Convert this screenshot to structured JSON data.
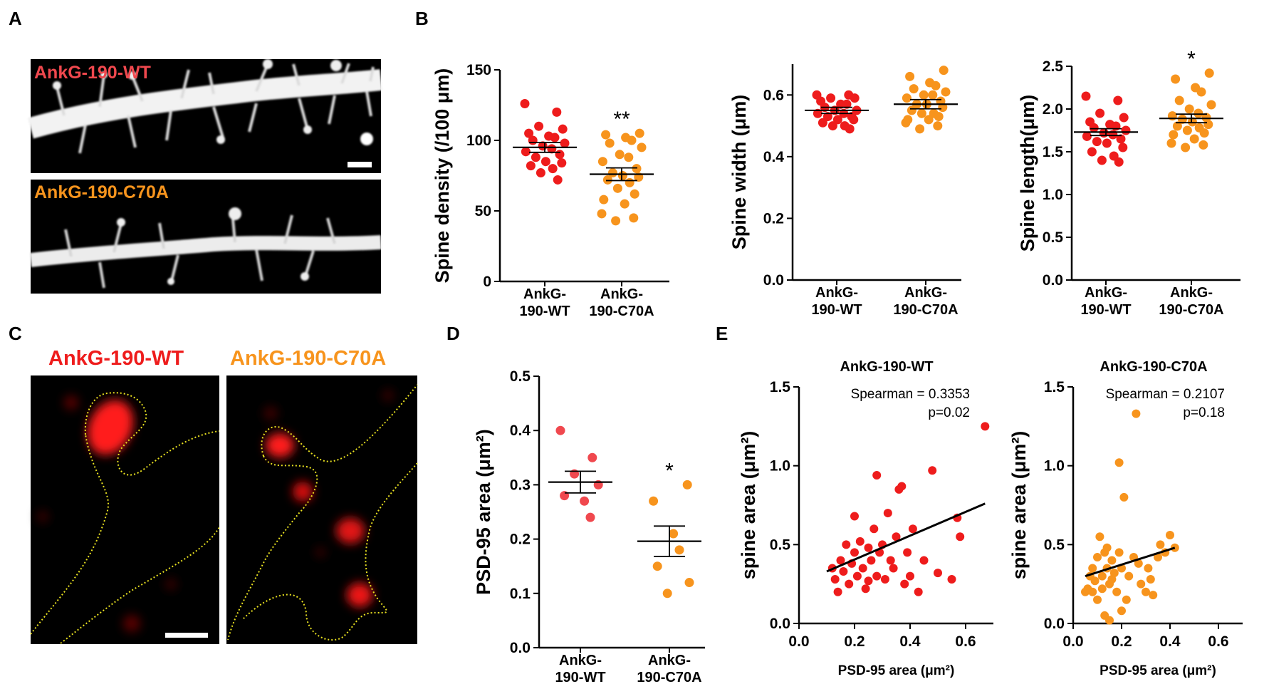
{
  "panel_labels": {
    "a": "A",
    "b": "B",
    "c": "C",
    "d": "D",
    "e": "E"
  },
  "colors": {
    "wt": "#ee1c1c",
    "c70a": "#f7941d",
    "wt_light": "#f0484e",
    "outline": "#e8e020"
  },
  "images": {
    "a_top_label": "AnkG-190-WT",
    "a_bottom_label": "AnkG-190-C70A",
    "c_left_title": "AnkG-190-WT",
    "c_right_title": "AnkG-190-C70A"
  },
  "chart_data": [
    {
      "id": "density",
      "type": "scatter",
      "ylabel": "Spine density (/100 μm)",
      "ylim": [
        0,
        150
      ],
      "yticks": [
        "0",
        "50",
        "100",
        "150"
      ],
      "categories": [
        "AnkG-\n190-WT",
        "AnkG-\n190-C70A"
      ],
      "series": [
        {
          "name": "AnkG-190-WT",
          "mean": 95,
          "sem": 3.5,
          "values": [
            126,
            120,
            110,
            108,
            105,
            103,
            102,
            100,
            98,
            96,
            94,
            92,
            90,
            88,
            85,
            84,
            82,
            80,
            77,
            72
          ]
        },
        {
          "name": "AnkG-190-C70A",
          "mean": 76,
          "sem": 4.5,
          "values": [
            105,
            104,
            102,
            100,
            98,
            95,
            90,
            88,
            85,
            80,
            77,
            75,
            74,
            72,
            70,
            66,
            62,
            58,
            55,
            48,
            45,
            43
          ]
        }
      ],
      "significance": "**"
    },
    {
      "id": "width",
      "type": "scatter",
      "ylabel": "Spine width (μm)",
      "ylim": [
        0,
        0.7
      ],
      "yticks": [
        "0.0",
        "0.2",
        "0.4",
        "0.6"
      ],
      "categories": [
        "AnkG-\n190-WT",
        "AnkG-\n190-C70A"
      ],
      "series": [
        {
          "name": "AnkG-190-WT",
          "mean": 0.55,
          "sem": 0.01,
          "values": [
            0.6,
            0.6,
            0.59,
            0.59,
            0.58,
            0.57,
            0.57,
            0.56,
            0.55,
            0.55,
            0.54,
            0.54,
            0.53,
            0.53,
            0.52,
            0.52,
            0.51,
            0.5,
            0.5,
            0.49
          ]
        },
        {
          "name": "AnkG-190-C70A",
          "mean": 0.57,
          "sem": 0.015,
          "values": [
            0.68,
            0.66,
            0.64,
            0.63,
            0.62,
            0.61,
            0.6,
            0.6,
            0.59,
            0.58,
            0.57,
            0.57,
            0.56,
            0.55,
            0.54,
            0.54,
            0.53,
            0.52,
            0.52,
            0.51,
            0.5,
            0.49
          ]
        }
      ]
    },
    {
      "id": "length",
      "type": "scatter",
      "ylabel": "Spine length(μm)",
      "ylim": [
        0,
        2.5
      ],
      "yticks": [
        "0.0",
        "0.5",
        "1.0",
        "1.5",
        "2.0",
        "2.5"
      ],
      "categories": [
        "AnkG-\n190-WT",
        "AnkG-\n190-C70A"
      ],
      "series": [
        {
          "name": "AnkG-190-WT",
          "mean": 1.73,
          "sem": 0.04,
          "values": [
            2.15,
            2.1,
            1.95,
            1.9,
            1.85,
            1.82,
            1.8,
            1.78,
            1.75,
            1.72,
            1.7,
            1.68,
            1.65,
            1.62,
            1.6,
            1.55,
            1.5,
            1.45,
            1.4,
            1.38
          ]
        },
        {
          "name": "AnkG-190-C70A",
          "mean": 1.89,
          "sem": 0.05,
          "values": [
            2.42,
            2.35,
            2.25,
            2.2,
            2.1,
            2.05,
            2.0,
            1.95,
            1.92,
            1.9,
            1.88,
            1.85,
            1.82,
            1.8,
            1.78,
            1.75,
            1.72,
            1.7,
            1.65,
            1.6,
            1.58,
            1.55
          ]
        }
      ],
      "significance": "*"
    },
    {
      "id": "psd",
      "type": "scatter",
      "ylabel": "PSD-95 area (μm²)",
      "ylim": [
        0,
        0.5
      ],
      "yticks": [
        "0.0",
        "0.1",
        "0.2",
        "0.3",
        "0.4",
        "0.5"
      ],
      "categories": [
        "AnkG-\n190-WT",
        "AnkG-\n190-C70A"
      ],
      "series": [
        {
          "name": "AnkG-190-WT",
          "mean": 0.305,
          "sem": 0.02,
          "values": [
            0.4,
            0.35,
            0.32,
            0.3,
            0.28,
            0.27,
            0.24
          ]
        },
        {
          "name": "AnkG-190-C70A",
          "mean": 0.196,
          "sem": 0.028,
          "values": [
            0.3,
            0.27,
            0.21,
            0.18,
            0.15,
            0.12,
            0.1
          ]
        }
      ],
      "significance": "*"
    },
    {
      "id": "corr_wt",
      "type": "scatter",
      "title": "AnkG-190-WT",
      "xlabel": "PSD-95 area (μm²)",
      "ylabel": "spine area (μm²)",
      "xlim": [
        0,
        0.7
      ],
      "ylim": [
        0,
        1.5
      ],
      "xticks": [
        "0.0",
        "0.2",
        "0.4",
        "0.6"
      ],
      "yticks": [
        "0.0",
        "0.5",
        "1.0",
        "1.5"
      ],
      "annotation": [
        "Spearman  = 0.3353",
        "p=0.02"
      ],
      "fit": {
        "x0": 0.1,
        "y0": 0.33,
        "x1": 0.67,
        "y1": 0.76
      },
      "points": [
        [
          0.12,
          0.35
        ],
        [
          0.13,
          0.28
        ],
        [
          0.14,
          0.2
        ],
        [
          0.15,
          0.4
        ],
        [
          0.16,
          0.33
        ],
        [
          0.17,
          0.5
        ],
        [
          0.18,
          0.25
        ],
        [
          0.19,
          0.38
        ],
        [
          0.2,
          0.45
        ],
        [
          0.2,
          0.68
        ],
        [
          0.21,
          0.3
        ],
        [
          0.22,
          0.52
        ],
        [
          0.23,
          0.35
        ],
        [
          0.24,
          0.22
        ],
        [
          0.25,
          0.48
        ],
        [
          0.25,
          0.27
        ],
        [
          0.26,
          0.4
        ],
        [
          0.27,
          0.6
        ],
        [
          0.28,
          0.94
        ],
        [
          0.28,
          0.3
        ],
        [
          0.29,
          0.45
        ],
        [
          0.3,
          0.5
        ],
        [
          0.31,
          0.28
        ],
        [
          0.32,
          0.7
        ],
        [
          0.33,
          0.4
        ],
        [
          0.34,
          0.35
        ],
        [
          0.35,
          0.55
        ],
        [
          0.36,
          0.85
        ],
        [
          0.37,
          0.87
        ],
        [
          0.38,
          0.25
        ],
        [
          0.39,
          0.45
        ],
        [
          0.4,
          0.3
        ],
        [
          0.41,
          0.6
        ],
        [
          0.43,
          0.2
        ],
        [
          0.45,
          0.4
        ],
        [
          0.48,
          0.97
        ],
        [
          0.5,
          0.32
        ],
        [
          0.55,
          0.28
        ],
        [
          0.57,
          0.67
        ],
        [
          0.58,
          0.55
        ],
        [
          0.67,
          1.25
        ]
      ]
    },
    {
      "id": "corr_c70a",
      "type": "scatter",
      "title": "AnkG-190-C70A",
      "xlabel": "PSD-95 area (μm²)",
      "ylabel": "spine area (μm²)",
      "xlim": [
        0,
        0.7
      ],
      "ylim": [
        0,
        1.5
      ],
      "xticks": [
        "0.0",
        "0.2",
        "0.4",
        "0.6"
      ],
      "yticks": [
        "0.0",
        "0.5",
        "1.0",
        "1.5"
      ],
      "annotation": [
        "Spearman  = 0.2107",
        "p=0.18"
      ],
      "fit": {
        "x0": 0.05,
        "y0": 0.3,
        "x1": 0.42,
        "y1": 0.48
      },
      "points": [
        [
          0.05,
          0.2
        ],
        [
          0.06,
          0.22
        ],
        [
          0.07,
          0.3
        ],
        [
          0.08,
          0.2
        ],
        [
          0.08,
          0.35
        ],
        [
          0.09,
          0.27
        ],
        [
          0.1,
          0.42
        ],
        [
          0.1,
          0.15
        ],
        [
          0.11,
          0.55
        ],
        [
          0.12,
          0.3
        ],
        [
          0.12,
          0.22
        ],
        [
          0.13,
          0.45
        ],
        [
          0.13,
          0.05
        ],
        [
          0.14,
          0.48
        ],
        [
          0.14,
          0.35
        ],
        [
          0.15,
          0.02
        ],
        [
          0.15,
          0.25
        ],
        [
          0.16,
          0.4
        ],
        [
          0.16,
          0.28
        ],
        [
          0.17,
          0.32
        ],
        [
          0.18,
          0.2
        ],
        [
          0.19,
          0.45
        ],
        [
          0.19,
          1.02
        ],
        [
          0.2,
          0.08
        ],
        [
          0.2,
          0.35
        ],
        [
          0.21,
          0.8
        ],
        [
          0.22,
          0.15
        ],
        [
          0.23,
          0.3
        ],
        [
          0.25,
          0.42
        ],
        [
          0.26,
          1.33
        ],
        [
          0.27,
          0.38
        ],
        [
          0.28,
          0.25
        ],
        [
          0.3,
          0.2
        ],
        [
          0.31,
          0.35
        ],
        [
          0.32,
          0.28
        ],
        [
          0.33,
          0.18
        ],
        [
          0.35,
          0.42
        ],
        [
          0.36,
          0.5
        ],
        [
          0.38,
          0.45
        ],
        [
          0.4,
          0.56
        ],
        [
          0.42,
          0.48
        ]
      ]
    }
  ]
}
